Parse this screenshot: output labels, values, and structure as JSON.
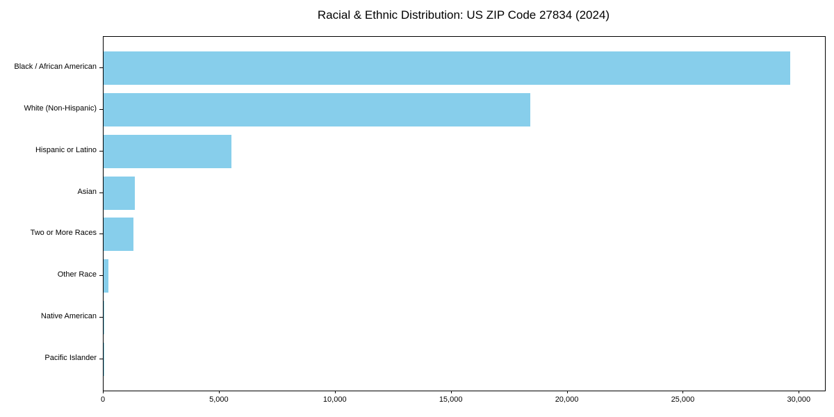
{
  "chart_data": {
    "type": "bar",
    "orientation": "horizontal",
    "title": "Racial & Ethnic Distribution: US ZIP Code 27834 (2024)",
    "categories": [
      "Black / African American",
      "White (Non-Hispanic)",
      "Hispanic or Latino",
      "Asian",
      "Two or More Races",
      "Other Race",
      "Native American",
      "Pacific Islander"
    ],
    "values": [
      29600,
      18400,
      5500,
      1350,
      1300,
      200,
      40,
      10
    ],
    "xlabel": "",
    "ylabel": "",
    "xlim": [
      0,
      31100
    ],
    "x_ticks": [
      0,
      5000,
      10000,
      15000,
      20000,
      25000,
      30000
    ],
    "x_tick_labels": [
      "0",
      "5,000",
      "10,000",
      "15,000",
      "20,000",
      "25,000",
      "30,000"
    ],
    "bar_color": "#87CEEB",
    "frame_color": "#000000",
    "background": "#FFFFFF",
    "grid": false,
    "legend": null
  }
}
